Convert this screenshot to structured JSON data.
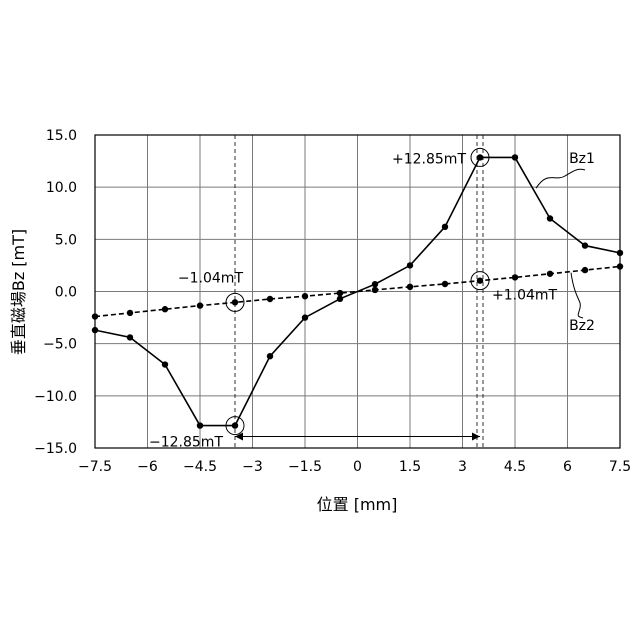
{
  "chart_data": {
    "type": "line",
    "xlabel": "位置 [mm]",
    "ylabel": "垂直磁場Bz [mT]",
    "xlim": [
      -7.5,
      7.5
    ],
    "ylim": [
      -15,
      15
    ],
    "x_tick_values": [
      -7.5,
      -6,
      -4.5,
      -3,
      -1.5,
      0,
      1.5,
      3,
      4.5,
      6,
      7.5
    ],
    "x_tick_labels": [
      "−7.5",
      "−6",
      "−4.5",
      "−3",
      "−1.5",
      "0",
      "1.5",
      "3",
      "4.5",
      "6",
      "7.5"
    ],
    "y_tick_values": [
      15,
      10,
      5,
      0,
      -5,
      -10,
      -15
    ],
    "y_tick_labels": [
      "15.0",
      "10.0",
      "5.0",
      "0.0",
      "−5.0",
      "−10.0",
      "−15.0"
    ],
    "grid": true,
    "series": [
      {
        "name": "Bz1",
        "style": "solid",
        "x": [
          -7.5,
          -6.5,
          -5.5,
          -4.5,
          -3.5,
          -2.5,
          -1.5,
          -0.5,
          0.5,
          1.5,
          2.5,
          3.5,
          4.5,
          5.5,
          6.5,
          7.5
        ],
        "y": [
          -3.7,
          -4.4,
          -7.0,
          -12.85,
          -12.85,
          -6.2,
          -2.5,
          -0.7,
          0.7,
          2.5,
          6.2,
          12.85,
          12.85,
          7.0,
          4.4,
          3.7
        ]
      },
      {
        "name": "Bz2",
        "style": "dashed",
        "x": [
          -7.5,
          -6.5,
          -5.5,
          -4.5,
          -3.5,
          -2.5,
          -1.5,
          -0.5,
          0.5,
          1.5,
          2.5,
          3.5,
          4.5,
          5.5,
          6.5,
          7.5
        ],
        "y": [
          -2.4,
          -2.05,
          -1.7,
          -1.35,
          -1.04,
          -0.72,
          -0.45,
          -0.15,
          0.15,
          0.45,
          0.72,
          1.04,
          1.35,
          1.7,
          2.05,
          2.4
        ]
      }
    ],
    "annotations": {
      "bz1_max": {
        "text": "+12.85mT",
        "x": 3.5,
        "y": 12.85
      },
      "bz1_min": {
        "text": "−12.85mT",
        "x": -3.5,
        "y": -12.85
      },
      "bz2_pos": {
        "text": "+1.04mT",
        "x": 3.5,
        "y": 1.04
      },
      "bz2_neg": {
        "text": "−1.04mT",
        "x": -3.5,
        "y": -1.04
      }
    }
  }
}
